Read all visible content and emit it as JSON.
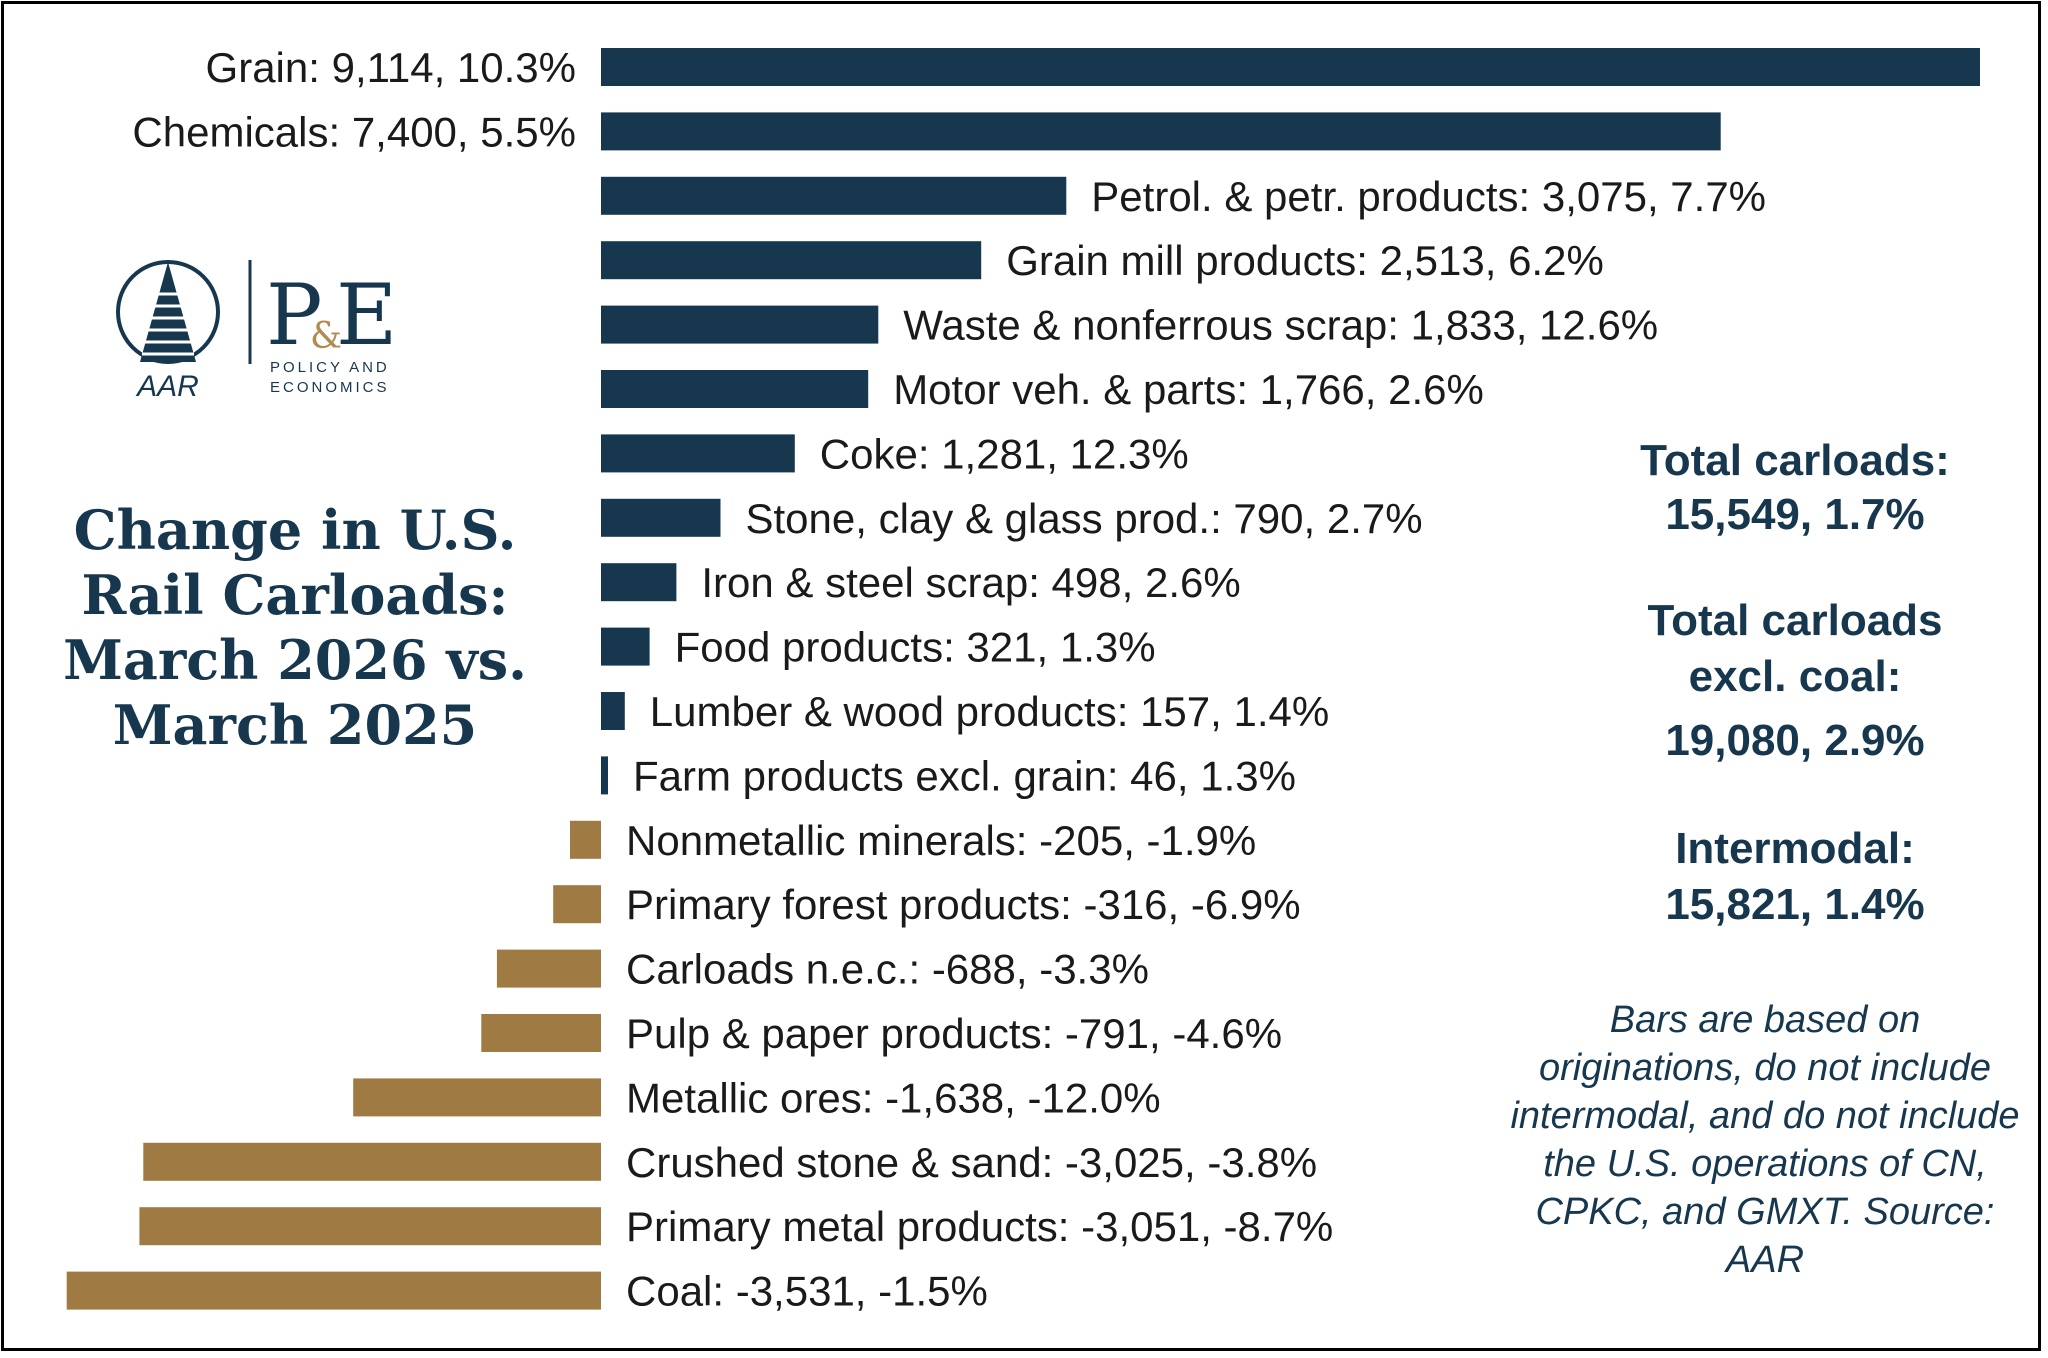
{
  "title": "Change in U.S. Rail Carloads: March 2026 vs. March 2025",
  "logo": {
    "aar_text": "AAR",
    "pe_p": "P",
    "pe_amp": "&",
    "pe_e": "E",
    "pe_line1": "POLICY AND",
    "pe_line2": "ECONOMICS"
  },
  "stats": {
    "total_label": "Total carloads:",
    "total_value": "15,549, 1.7%",
    "excl_label_1": "Total carloads",
    "excl_label_2": "excl. coal:",
    "excl_value": "19,080, 2.9%",
    "intermodal_label": "Intermodal:",
    "intermodal_value": "15,821, 1.4%"
  },
  "note": "Bars are based on originations, do not include intermodal, and do not include the U.S. operations of CN, CPKC, and GMXT. Source: AAR",
  "colors": {
    "positive": "#17374f",
    "negative": "#a07a43",
    "text": "#1a1a1a",
    "title": "#17374f"
  },
  "chart_data": {
    "type": "bar",
    "orientation": "horizontal",
    "categories": [
      "Grain: 9,114, 10.3%",
      "Chemicals: 7,400, 5.5%",
      "Petrol. & petr. products: 3,075, 7.7%",
      "Grain mill products: 2,513, 6.2%",
      "Waste & nonferrous scrap: 1,833, 12.6%",
      "Motor veh. & parts: 1,766, 2.6%",
      "Coke: 1,281, 12.3%",
      "Stone, clay & glass prod.: 790, 2.7%",
      "Iron & steel scrap: 498, 2.6%",
      "Food products: 321, 1.3%",
      "Lumber & wood products: 157, 1.4%",
      "Farm products excl. grain: 46, 1.3%",
      "Nonmetallic minerals: -205, -1.9%",
      "Primary forest products: -316, -6.9%",
      "Carloads n.e.c.: -688, -3.3%",
      "Pulp & paper products: -791, -4.6%",
      "Metallic ores: -1,638, -12.0%",
      "Crushed stone & sand: -3,025, -3.8%",
      "Primary metal products: -3,051, -8.7%",
      "Coal: -3,531, -1.5%"
    ],
    "values": [
      9114,
      7400,
      3075,
      2513,
      1833,
      1766,
      1281,
      790,
      498,
      321,
      157,
      46,
      -205,
      -316,
      -688,
      -791,
      -1638,
      -3025,
      -3051,
      -3531
    ],
    "pct_change": [
      10.3,
      5.5,
      7.7,
      6.2,
      12.6,
      2.6,
      12.3,
      2.7,
      2.6,
      1.3,
      1.4,
      1.3,
      -1.9,
      -6.9,
      -3.3,
      -4.6,
      -12.0,
      -3.8,
      -8.7,
      -1.5
    ],
    "xlim": [
      -3531,
      9114
    ],
    "grid": false,
    "legend": "none"
  }
}
